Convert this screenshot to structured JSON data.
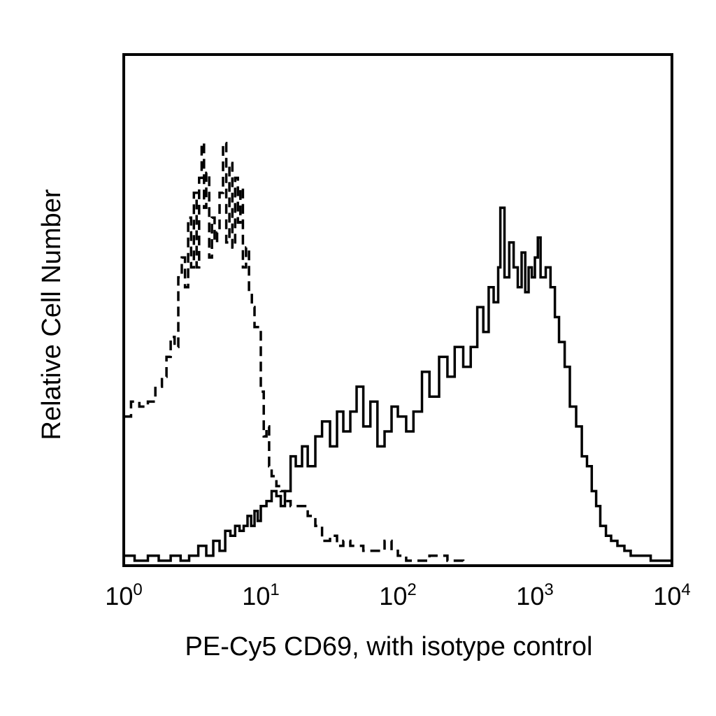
{
  "chart_data": {
    "type": "line",
    "subtype": "flow cytometry histogram overlay",
    "xlabel": "PE-Cy5 CD69, with isotype control",
    "ylabel": "Relative Cell Number",
    "x_scale": "log",
    "xlim": [
      1,
      10000
    ],
    "ylim": [
      0,
      100
    ],
    "y_ticks_shown": false,
    "grid": false,
    "x_ticks": [
      {
        "base": "10",
        "exp": "0",
        "value": 1
      },
      {
        "base": "10",
        "exp": "1",
        "value": 10
      },
      {
        "base": "10",
        "exp": "2",
        "value": 100
      },
      {
        "base": "10",
        "exp": "3",
        "value": 1000
      },
      {
        "base": "10",
        "exp": "4",
        "value": 10000
      }
    ],
    "series": [
      {
        "style": "dashed",
        "color": "#000000",
        "x": [
          1.0,
          1.13,
          1.3,
          1.5,
          1.7,
          1.9,
          2.05,
          2.2,
          2.35,
          2.5,
          2.65,
          2.8,
          2.95,
          3.1,
          3.25,
          3.4,
          3.55,
          3.7,
          3.85,
          4.0,
          4.2,
          4.4,
          4.6,
          4.8,
          5.0,
          5.3,
          5.6,
          5.9,
          6.2,
          6.5,
          6.8,
          7.1,
          7.4,
          7.8,
          8.2,
          8.6,
          9.0,
          9.5,
          10.0,
          10.5,
          11.0,
          11.5,
          12.0,
          13.0,
          14.0,
          15.0,
          16.5,
          18.0,
          20.0,
          22.0,
          25.0,
          28.0,
          32.0,
          36.0,
          40.0,
          45.0,
          50.0,
          56.0,
          63.0,
          71.0,
          80.0,
          90.0,
          100.0,
          115.0,
          130.0,
          150.0,
          170.0,
          200.0,
          230.0,
          260.0,
          300.0,
          10000.0
        ],
        "y": [
          30,
          33,
          32,
          33,
          36,
          38,
          42,
          46,
          44,
          58,
          62,
          56,
          70,
          60,
          75,
          60,
          78,
          85,
          72,
          79,
          62,
          70,
          65,
          67,
          75,
          85,
          65,
          81,
          64,
          78,
          69,
          76,
          60,
          64,
          55,
          52,
          48,
          48,
          35,
          26,
          28,
          20,
          18,
          16,
          15,
          13,
          12,
          12,
          12,
          10,
          8,
          5,
          6,
          4,
          5,
          4,
          4,
          3,
          3,
          3,
          5,
          3,
          2,
          1,
          1,
          1,
          2,
          2,
          1,
          1,
          0,
          0
        ]
      },
      {
        "style": "solid",
        "color": "#000000",
        "x": [
          1.0,
          1.2,
          1.5,
          1.8,
          2.2,
          2.6,
          3.0,
          3.5,
          4.0,
          4.5,
          5.0,
          5.5,
          6.0,
          6.5,
          7.0,
          7.5,
          8.0,
          8.5,
          9.0,
          9.5,
          10.0,
          11.0,
          12.0,
          13.0,
          14.0,
          15.0,
          16.5,
          18.0,
          20.0,
          22.0,
          25.0,
          28.0,
          32.0,
          36.0,
          40.0,
          45.0,
          50.0,
          56.0,
          63.0,
          71.0,
          80.0,
          90.0,
          100.0,
          115.0,
          130.0,
          150.0,
          170.0,
          200.0,
          230.0,
          260.0,
          300.0,
          340.0,
          380.0,
          420.0,
          460.0,
          500.0,
          540.0,
          560.0,
          600.0,
          650.0,
          700.0,
          750.0,
          800.0,
          850.0,
          900.0,
          950.0,
          1000.0,
          1050.0,
          1100.0,
          1200.0,
          1300.0,
          1400.0,
          1500.0,
          1650.0,
          1800.0,
          2000.0,
          2200.0,
          2400.0,
          2600.0,
          2800.0,
          3000.0,
          3300.0,
          3600.0,
          4000.0,
          4500.0,
          5000.0,
          6000.0,
          7000.0,
          8000.0,
          10000.0
        ],
        "y": [
          2,
          1,
          2,
          1,
          2,
          1,
          2,
          4,
          2,
          5,
          3,
          7,
          6,
          8,
          7,
          8,
          10,
          8,
          11,
          9,
          12,
          13,
          15,
          14,
          12,
          15,
          22,
          20,
          24,
          20,
          26,
          29,
          24,
          31,
          27,
          31,
          36,
          28,
          33,
          24,
          27,
          32,
          30,
          27,
          31,
          39,
          34,
          42,
          38,
          44,
          40,
          44,
          52,
          47,
          56,
          53,
          60,
          72,
          58,
          65,
          60,
          56,
          63,
          55,
          60,
          58,
          62,
          66,
          58,
          60,
          56,
          50,
          45,
          40,
          32,
          28,
          22,
          20,
          15,
          12,
          8,
          6,
          5,
          4,
          3,
          2,
          2,
          1,
          1,
          0
        ]
      }
    ]
  }
}
